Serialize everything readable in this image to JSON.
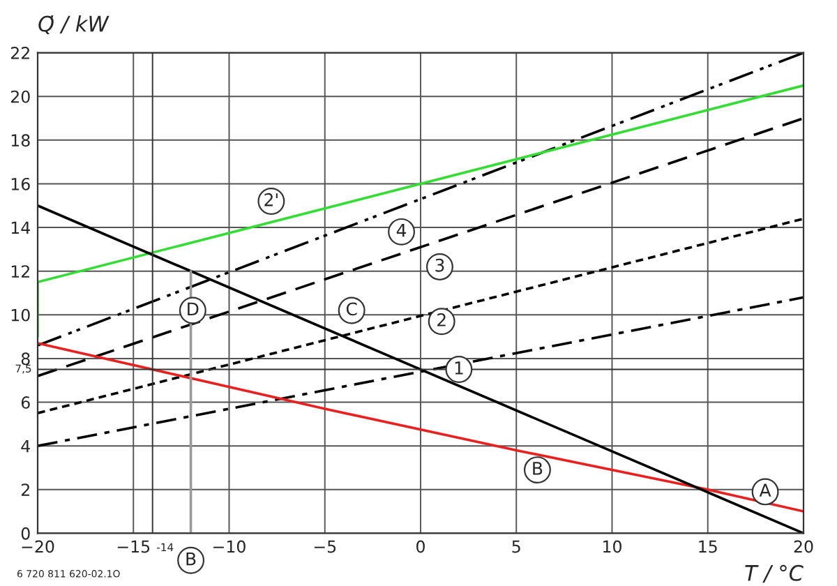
{
  "chart_data": {
    "type": "line",
    "xlabel": "T / °C",
    "ylabel": "Q̇ / kW",
    "xlim": [
      -20,
      20
    ],
    "ylim": [
      0,
      22
    ],
    "xticks": [
      {
        "value": -20,
        "label": "−20"
      },
      {
        "value": -15,
        "label": "−15"
      },
      {
        "value": -10,
        "label": "−10"
      },
      {
        "value": -5,
        "label": "−5"
      },
      0,
      5,
      10,
      15,
      20
    ],
    "yticks": [
      0,
      2,
      4,
      6,
      8,
      10,
      12,
      14,
      16,
      18,
      20,
      22
    ],
    "ref_lines": [
      {
        "axis": "x",
        "value": -14,
        "label": "-14",
        "color": "#333333"
      },
      {
        "axis": "y",
        "value": 7.5,
        "label": "7,5",
        "color": "#333333"
      }
    ],
    "grid": true,
    "legend": false,
    "marker": "none",
    "series": [
      {
        "color": "#000000",
        "line_style": "dashdot",
        "x": [
          -20,
          20
        ],
        "values": [
          4.0,
          10.8
        ]
      },
      {
        "color": "#000000",
        "line_style": "dotted",
        "x": [
          -20,
          20
        ],
        "values": [
          5.5,
          14.4
        ]
      },
      {
        "color": "#000000",
        "line_style": "dashed",
        "x": [
          -20,
          20
        ],
        "values": [
          7.2,
          19.0
        ]
      },
      {
        "color": "#000000",
        "line_style": "dashdotdot",
        "x": [
          -20,
          20
        ],
        "values": [
          8.6,
          22.0
        ]
      },
      {
        "color": "#33dd33",
        "line_style": "solid",
        "x": [
          -20,
          -20,
          20
        ],
        "values": [
          9.0,
          11.5,
          20.5
        ]
      },
      {
        "color": "#e82020",
        "line_style": "solid",
        "x": [
          -20,
          -5,
          5,
          15,
          20
        ],
        "values": [
          8.7,
          5.7,
          3.8,
          2.0,
          1.0
        ]
      },
      {
        "color": "#000000",
        "line_style": "solid",
        "x": [
          -20,
          20
        ],
        "values": [
          15.0,
          0.0
        ]
      },
      {
        "color": "#999999",
        "line_style": "solid",
        "x": [
          -12,
          -12
        ],
        "values": [
          0,
          12
        ]
      }
    ],
    "annotations": [
      {
        "text": "1",
        "x": 2.0,
        "y": 7.5
      },
      {
        "text": "2",
        "x": 1.1,
        "y": 9.7
      },
      {
        "text": "3",
        "x": 1.0,
        "y": 12.2
      },
      {
        "text": "4",
        "x": -1.0,
        "y": 13.8
      },
      {
        "text": "2'",
        "x": -7.8,
        "y": 15.2
      },
      {
        "text": "B",
        "x": 6.1,
        "y": 2.9
      },
      {
        "text": "A",
        "x": 18.0,
        "y": 1.9
      },
      {
        "text": "C",
        "x": -3.6,
        "y": 10.2
      },
      {
        "text": "D",
        "x": -11.9,
        "y": 10.2
      },
      {
        "text": "B",
        "x": -12,
        "y": 0
      },
      "6 720 811 620-02.1O"
    ]
  }
}
